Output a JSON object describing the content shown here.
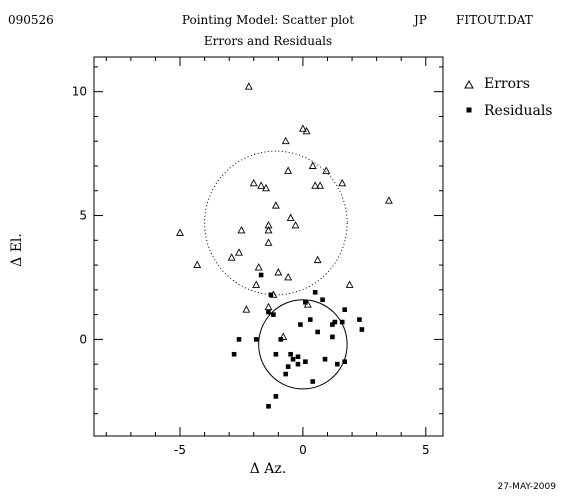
{
  "header": {
    "date_code": "090526",
    "title": "Pointing Model: Scatter plot",
    "subtitle": "Errors and Residuals",
    "initials": "JP",
    "filename": "FITOUT.DAT"
  },
  "footer": {
    "date": "27-MAY-2009"
  },
  "chart_data": {
    "type": "scatter",
    "title": "Pointing Model: Scatter plot",
    "subtitle": "Errors and Residuals",
    "xlabel": "Δ Az.",
    "ylabel": "Δ El.",
    "xlim": [
      -8.5,
      5.7
    ],
    "ylim": [
      -3.9,
      11.4
    ],
    "x_ticks": [
      -5,
      0,
      5
    ],
    "y_ticks": [
      0,
      5,
      10
    ],
    "grid": false,
    "legend_position": "right",
    "series": [
      {
        "name": "Errors",
        "marker": "triangle-open",
        "points": [
          [
            -2.2,
            10.2
          ],
          [
            0.0,
            8.5
          ],
          [
            0.15,
            8.4
          ],
          [
            -0.7,
            8.0
          ],
          [
            0.4,
            7.0
          ],
          [
            0.95,
            6.8
          ],
          [
            -0.6,
            6.8
          ],
          [
            -2.0,
            6.3
          ],
          [
            -1.7,
            6.2
          ],
          [
            -1.5,
            6.1
          ],
          [
            0.5,
            6.2
          ],
          [
            0.7,
            6.2
          ],
          [
            1.6,
            6.3
          ],
          [
            3.5,
            5.6
          ],
          [
            -1.1,
            5.4
          ],
          [
            -0.5,
            4.9
          ],
          [
            -0.3,
            4.6
          ],
          [
            -5.0,
            4.3
          ],
          [
            -2.5,
            4.4
          ],
          [
            -1.4,
            4.6
          ],
          [
            -1.4,
            4.4
          ],
          [
            -1.4,
            3.9
          ],
          [
            -2.6,
            3.5
          ],
          [
            -2.9,
            3.3
          ],
          [
            -4.3,
            3.0
          ],
          [
            0.6,
            3.2
          ],
          [
            -1.8,
            2.9
          ],
          [
            -1.0,
            2.7
          ],
          [
            -0.6,
            2.5
          ],
          [
            -1.9,
            2.2
          ],
          [
            1.9,
            2.2
          ],
          [
            -1.2,
            1.8
          ],
          [
            0.2,
            1.4
          ],
          [
            -1.4,
            1.3
          ],
          [
            -2.3,
            1.2
          ],
          [
            -0.8,
            0.1
          ]
        ]
      },
      {
        "name": "Residuals",
        "marker": "square-filled",
        "points": [
          [
            0.5,
            1.9
          ],
          [
            0.8,
            1.6
          ],
          [
            -1.3,
            1.8
          ],
          [
            0.1,
            1.5
          ],
          [
            -1.7,
            2.6
          ],
          [
            1.7,
            1.2
          ],
          [
            -1.4,
            1.1
          ],
          [
            -1.2,
            1.0
          ],
          [
            2.3,
            0.8
          ],
          [
            1.3,
            0.7
          ],
          [
            1.6,
            0.7
          ],
          [
            2.4,
            0.4
          ],
          [
            0.3,
            0.8
          ],
          [
            -0.1,
            0.6
          ],
          [
            1.2,
            0.6
          ],
          [
            -2.6,
            0.0
          ],
          [
            -1.9,
            0.0
          ],
          [
            -0.9,
            0.0
          ],
          [
            0.6,
            0.3
          ],
          [
            1.2,
            0.1
          ],
          [
            -2.8,
            -0.6
          ],
          [
            -1.1,
            -0.6
          ],
          [
            -0.5,
            -0.6
          ],
          [
            -0.4,
            -0.8
          ],
          [
            -0.2,
            -0.7
          ],
          [
            0.1,
            -0.9
          ],
          [
            0.9,
            -0.8
          ],
          [
            -0.2,
            -1.0
          ],
          [
            1.7,
            -0.9
          ],
          [
            -0.6,
            -1.1
          ],
          [
            1.4,
            -1.0
          ],
          [
            -0.7,
            -1.4
          ],
          [
            0.4,
            -1.7
          ],
          [
            -1.1,
            -2.3
          ],
          [
            -1.4,
            -2.7
          ]
        ]
      }
    ],
    "circles": [
      {
        "center": [
          -1.1,
          4.7
        ],
        "radius": 2.9,
        "style": "dotted"
      },
      {
        "center": [
          0.0,
          -0.2
        ],
        "radius": 1.8,
        "style": "solid"
      }
    ]
  }
}
